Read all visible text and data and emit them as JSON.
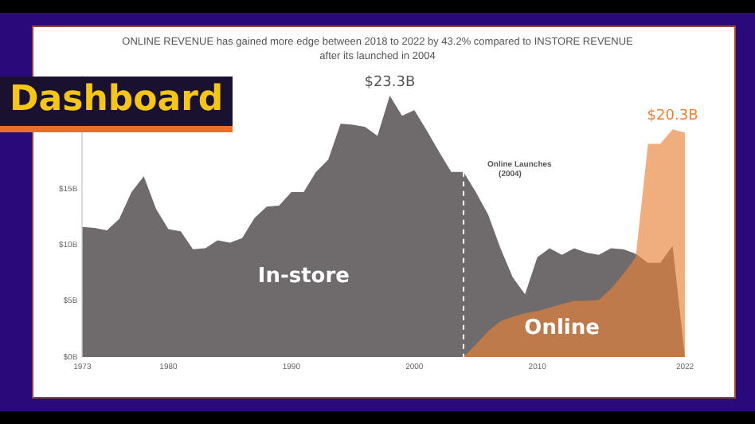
{
  "chart_data": {
    "type": "area",
    "title": "ONLINE REVENUE has gained more edge between 2018 to 2022 by 43.2% compared to INSTORE REVENUE after its launched in 2004",
    "x": [
      1973,
      1974,
      1975,
      1976,
      1977,
      1978,
      1979,
      1980,
      1981,
      1982,
      1983,
      1984,
      1985,
      1986,
      1987,
      1988,
      1989,
      1990,
      1991,
      1992,
      1993,
      1994,
      1995,
      1996,
      1997,
      1998,
      1999,
      2000,
      2001,
      2002,
      2003,
      2004,
      2005,
      2006,
      2007,
      2008,
      2009,
      2010,
      2011,
      2012,
      2013,
      2014,
      2015,
      2016,
      2017,
      2018,
      2019,
      2020,
      2021,
      2022
    ],
    "series": [
      {
        "name": "In-store",
        "color": "#6f6a6b",
        "values": [
          11.6,
          11.5,
          11.3,
          12.3,
          14.7,
          16.1,
          13.2,
          11.4,
          11.2,
          9.6,
          9.7,
          10.4,
          10.2,
          10.6,
          12.4,
          13.4,
          13.5,
          14.7,
          14.7,
          16.5,
          17.6,
          20.8,
          20.7,
          20.5,
          19.7,
          23.3,
          21.5,
          22,
          20.2,
          18.3,
          16.5,
          16.5,
          14.7,
          12.7,
          9.7,
          7.1,
          5.6,
          8.9,
          9.7,
          9.1,
          9.7,
          9.3,
          9.1,
          9.7,
          9.6,
          9.2,
          8.4,
          8.4,
          9.9,
          0
        ]
      },
      {
        "name": "Online",
        "color": "#e8823a",
        "x": [
          2004,
          2005,
          2006,
          2007,
          2008,
          2009,
          2010,
          2011,
          2012,
          2013,
          2014,
          2015,
          2016,
          2017,
          2018,
          2019,
          2020,
          2021,
          2022
        ],
        "values": [
          0,
          1.1,
          2.3,
          3.2,
          3.6,
          3.9,
          4.1,
          4.4,
          4.7,
          5.0,
          5.0,
          5.1,
          6.1,
          7.4,
          8.9,
          19.0,
          19.0,
          20.3,
          20.0
        ]
      }
    ],
    "xlim": [
      1973,
      2022
    ],
    "xticks": [
      1973,
      1980,
      1990,
      2000,
      2010,
      2022
    ],
    "ylim": [
      0,
      25
    ],
    "yticks": [
      {
        "value": 0,
        "label": "$0B"
      },
      {
        "value": 5,
        "label": "$5B"
      },
      {
        "value": 10,
        "label": "$10B"
      },
      {
        "value": 15,
        "label": "$15B"
      }
    ],
    "ref_lines": [
      {
        "axis": "x",
        "value": 2004,
        "label": "Online Launches (2004)",
        "color": "#ffffff",
        "line_style": "dashed"
      }
    ],
    "annotations": [
      "Dashboard",
      {
        "text": "$23.3B",
        "x": 1998,
        "y": 23.3
      },
      {
        "text": "$20.3B",
        "x": 2021,
        "y": 20.3
      }
    ],
    "grid": false,
    "legend": false
  }
}
